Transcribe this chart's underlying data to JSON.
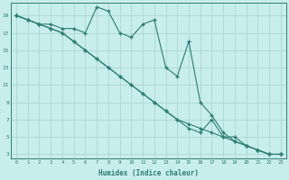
{
  "xlabel": "Humidex (Indice chaleur)",
  "background_color": "#c8eded",
  "grid_color": "#aed4d4",
  "line_color": "#2d7d72",
  "xlim": [
    -0.5,
    23.5
  ],
  "ylim": [
    2.5,
    20.5
  ],
  "xticks": [
    0,
    1,
    2,
    3,
    4,
    5,
    6,
    7,
    8,
    9,
    10,
    11,
    12,
    13,
    14,
    15,
    16,
    17,
    18,
    19,
    20,
    21,
    22,
    23
  ],
  "yticks": [
    3,
    5,
    7,
    9,
    11,
    13,
    15,
    17,
    19
  ],
  "line1_x": [
    0,
    1,
    2,
    3,
    4,
    5,
    6,
    7,
    8,
    9,
    10,
    11,
    12,
    13,
    14,
    15,
    16,
    17,
    18,
    19,
    20,
    21,
    22,
    23
  ],
  "line1_y": [
    19,
    18.5,
    18,
    18,
    17.5,
    17.5,
    17,
    20,
    19.5,
    17,
    16.5,
    18,
    18.5,
    13,
    12,
    16,
    9,
    7.5,
    5.5,
    4.5,
    4,
    3.5,
    3,
    3
  ],
  "line2_x": [
    0,
    1,
    2,
    3,
    4,
    5,
    6,
    7,
    8,
    9,
    10,
    11,
    12,
    13,
    14,
    15,
    16,
    17,
    18,
    19,
    20,
    21,
    22,
    23
  ],
  "line2_y": [
    19,
    18.5,
    18,
    17.5,
    17,
    16,
    15,
    14,
    13,
    12,
    11,
    10,
    9,
    8,
    7,
    6.5,
    6,
    5.5,
    5,
    4.5,
    4,
    3.5,
    3,
    3
  ],
  "line3_x": [
    0,
    1,
    2,
    3,
    4,
    5,
    6,
    7,
    8,
    9,
    10,
    11,
    12,
    13,
    14,
    15,
    16,
    17,
    18,
    19,
    20,
    21,
    22,
    23
  ],
  "line3_y": [
    19,
    18.5,
    18,
    17.5,
    17,
    16,
    15,
    14,
    13,
    12,
    11,
    10,
    9,
    8,
    7,
    6,
    5.5,
    7,
    5,
    5,
    4,
    3.5,
    3,
    3
  ]
}
